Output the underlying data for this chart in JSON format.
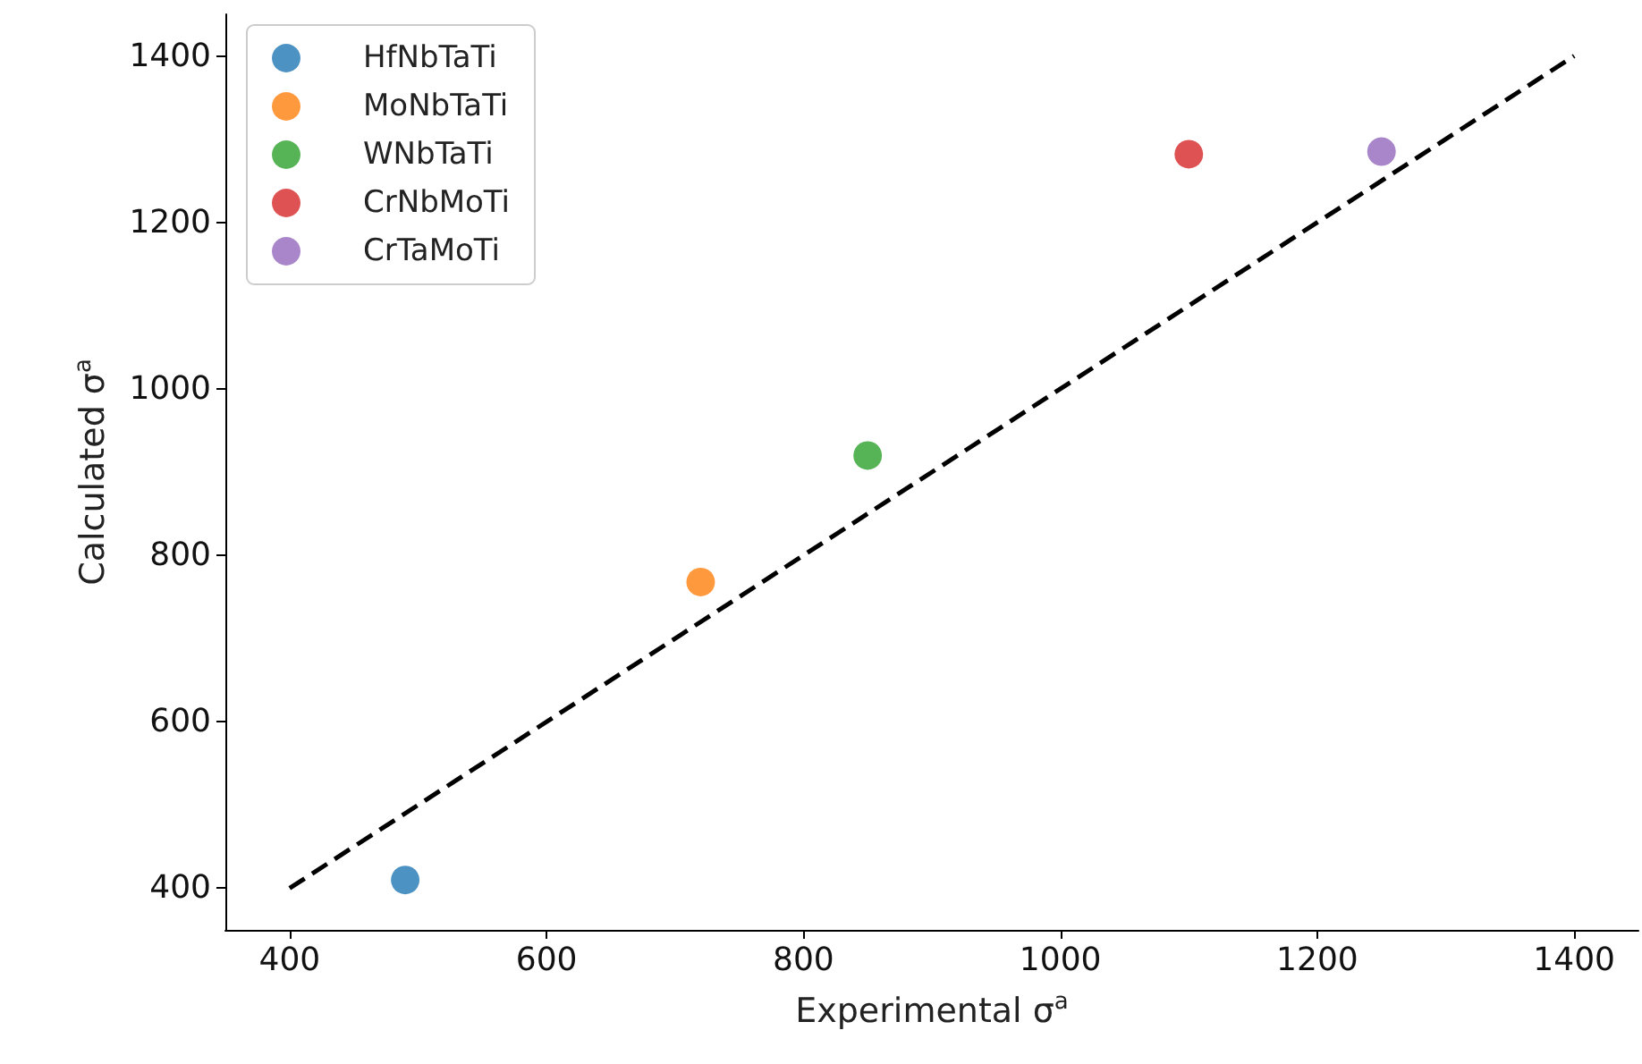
{
  "chart_data": {
    "type": "scatter",
    "xlabel": "Experimental σ$^{a}$",
    "ylabel": "Calculated σ$^{a}$",
    "xlim": [
      350,
      1450
    ],
    "ylim": [
      350,
      1450
    ],
    "xticks": [
      400,
      600,
      800,
      1000,
      1200,
      1400
    ],
    "yticks": [
      400,
      600,
      800,
      1000,
      1200,
      1400
    ],
    "grid": false,
    "legend": "top left",
    "marker": "circle",
    "series": [
      {
        "name": "HfNbTaTi",
        "color": "#1f77b4",
        "x": [
          490
        ],
        "values": [
          410
        ]
      },
      {
        "name": "MoNbTaTi",
        "color": "#ff7f0e",
        "x": [
          720
        ],
        "values": [
          768
        ]
      },
      {
        "name": "WNbTaTi",
        "color": "#2ca02c",
        "x": [
          850
        ],
        "values": [
          920
        ]
      },
      {
        "name": "CrNbMoTi",
        "color": "#d62728",
        "x": [
          1100
        ],
        "values": [
          1282
        ]
      },
      {
        "name": "CrTaMoTi",
        "color": "#9467bd",
        "x": [
          1250
        ],
        "values": [
          1285
        ]
      },
      {
        "type": "line",
        "color": "#000000",
        "line_style": "dashed",
        "marker": "none",
        "x": [
          400,
          1400
        ],
        "values": [
          400,
          1400
        ]
      }
    ]
  }
}
